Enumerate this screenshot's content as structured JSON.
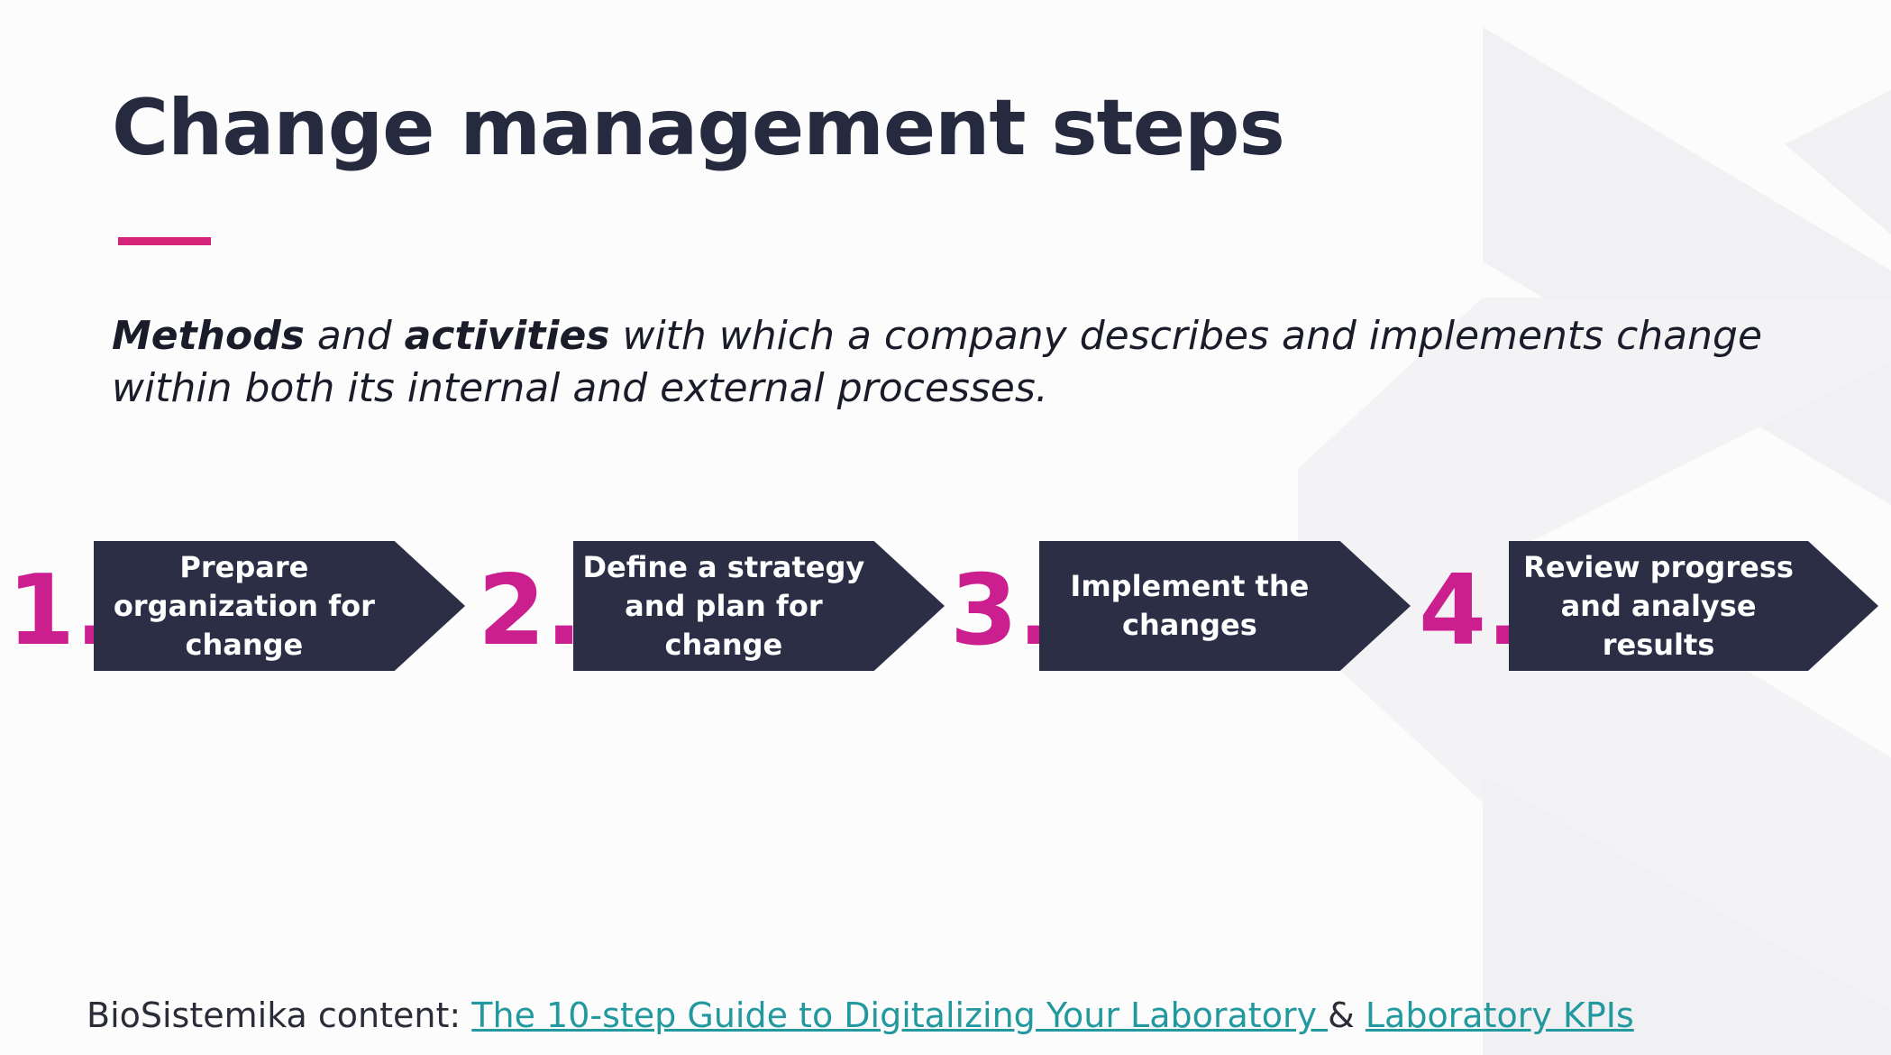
{
  "slide": {
    "title": "Change management steps",
    "subtitle": {
      "part1": "Methods",
      "part2": " and ",
      "part3": "activities",
      "part4": " with which a company describes and implements change within both its internal and external processes."
    },
    "steps": [
      {
        "number": "1.",
        "label": "Prepare organization for change"
      },
      {
        "number": "2.",
        "label": "Define a strategy and plan for change"
      },
      {
        "number": "3.",
        "label": "Implement the changes"
      },
      {
        "number": "4.",
        "label": "Review progress and analyse results"
      }
    ],
    "footer": {
      "prefix": "BioSistemika content: ",
      "link1": "The 10-step Guide to Digitalizing Your Laboratory ",
      "separator": "& ",
      "link2": "Laboratory KPIs"
    }
  },
  "colors": {
    "accent": "#cc1f8f",
    "underline": "#d5247a",
    "arrow": "#2b2e45",
    "link": "#22999e"
  }
}
